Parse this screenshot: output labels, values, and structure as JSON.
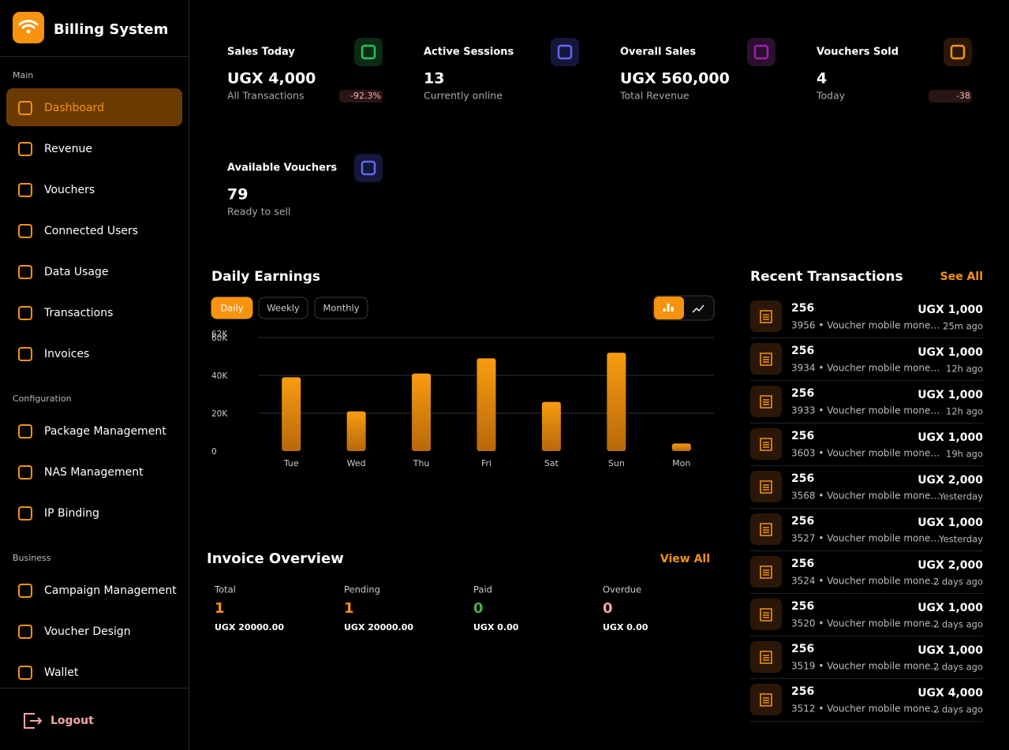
{
  "sidebar": {
    "app_title": "Billing System",
    "sections": [
      {
        "title": "Main",
        "items": [
          "Dashboard",
          "Revenue",
          "Vouchers",
          "Connected Users",
          "Data Usage",
          "Transactions",
          "Invoices"
        ]
      },
      {
        "title": "Configuration",
        "items": [
          "Package Management",
          "NAS Management",
          "IP Binding"
        ]
      },
      {
        "title": "Business",
        "items": [
          "Campaign Management",
          "Voucher Design",
          "Wallet"
        ]
      }
    ],
    "logout": "Logout"
  },
  "stats": [
    {
      "label": "Sales Today",
      "value": "UGX 4,000",
      "sub": "All Transactions",
      "change": "-92.3%"
    },
    {
      "label": "Active Sessions",
      "value": "13",
      "sub": "Currently online"
    },
    {
      "label": "Overall Sales",
      "value": "UGX 560,000",
      "sub": "Total Revenue"
    },
    {
      "label": "Vouchers Sold",
      "value": "4",
      "sub": "Today",
      "change": "-38"
    },
    {
      "label": "Available Vouchers",
      "value": "79",
      "sub": "Ready to sell"
    }
  ],
  "earnings_tabs": [
    "Daily",
    "Weekly",
    "Monthly"
  ],
  "chart_data": {
    "type": "bar",
    "title": "Daily Earnings",
    "categories": [
      "Tue",
      "Wed",
      "Thu",
      "Fri",
      "Sat",
      "Sun",
      "Mon"
    ],
    "values": [
      39000,
      21000,
      41000,
      49000,
      26000,
      52000,
      4000
    ],
    "color": "#f7930f",
    "ylim": [
      0,
      62000
    ],
    "yticks": [
      0,
      {
        "value": 20000,
        "label": "20K"
      },
      {
        "value": 40000,
        "label": "40K"
      },
      {
        "value": 60000,
        "label": "60K"
      },
      {
        "value": 62000,
        "label": "62K"
      }
    ],
    "grid": true
  },
  "invoice_overview": {
    "title": "Invoice Overview",
    "view_all": "View All",
    "items": [
      {
        "label": "Total",
        "count": "1",
        "amount": "UGX 20000.00",
        "color": "#f7930f"
      },
      {
        "label": "Pending",
        "count": "1",
        "amount": "UGX 20000.00",
        "color": "#f7930f"
      },
      {
        "label": "Paid",
        "count": "0",
        "amount": "UGX 0.00",
        "color": "#4caf50"
      },
      {
        "label": "Overdue",
        "count": "0",
        "amount": "UGX 0.00",
        "color": "#f4a5a5"
      }
    ]
  },
  "recent_transactions": {
    "title": "Recent Transactions",
    "see_all": "See All",
    "rows": [
      {
        "name": "256",
        "detail": "3956 • Voucher mobile mone…",
        "amount": "UGX 1,000",
        "time": "25m ago"
      },
      {
        "name": "256",
        "detail": "3934 • Voucher mobile mone…",
        "amount": "UGX 1,000",
        "time": "12h ago"
      },
      {
        "name": "256",
        "detail": "3933 • Voucher mobile mone…",
        "amount": "UGX 1,000",
        "time": "12h ago"
      },
      {
        "name": "256",
        "detail": "3603 • Voucher mobile mone…",
        "amount": "UGX 1,000",
        "time": "19h ago"
      },
      {
        "name": "256",
        "detail": "3568 • Voucher mobile mone…",
        "amount": "UGX 2,000",
        "time": "Yesterday"
      },
      {
        "name": "256",
        "detail": "3527 • Voucher mobile mone…",
        "amount": "UGX 1,000",
        "time": "Yesterday"
      },
      {
        "name": "256",
        "detail": "3524 • Voucher mobile mone…",
        "amount": "UGX 2,000",
        "time": "2 days ago"
      },
      {
        "name": "256",
        "detail": "3520 • Voucher mobile mone…",
        "amount": "UGX 1,000",
        "time": "2 days ago"
      },
      {
        "name": "256",
        "detail": "3519 • Voucher mobile mone…",
        "amount": "UGX 1,000",
        "time": "2 days ago"
      },
      {
        "name": "256",
        "detail": "3512 • Voucher mobile mone…",
        "amount": "UGX 4,000",
        "time": "2 days ago"
      }
    ]
  }
}
